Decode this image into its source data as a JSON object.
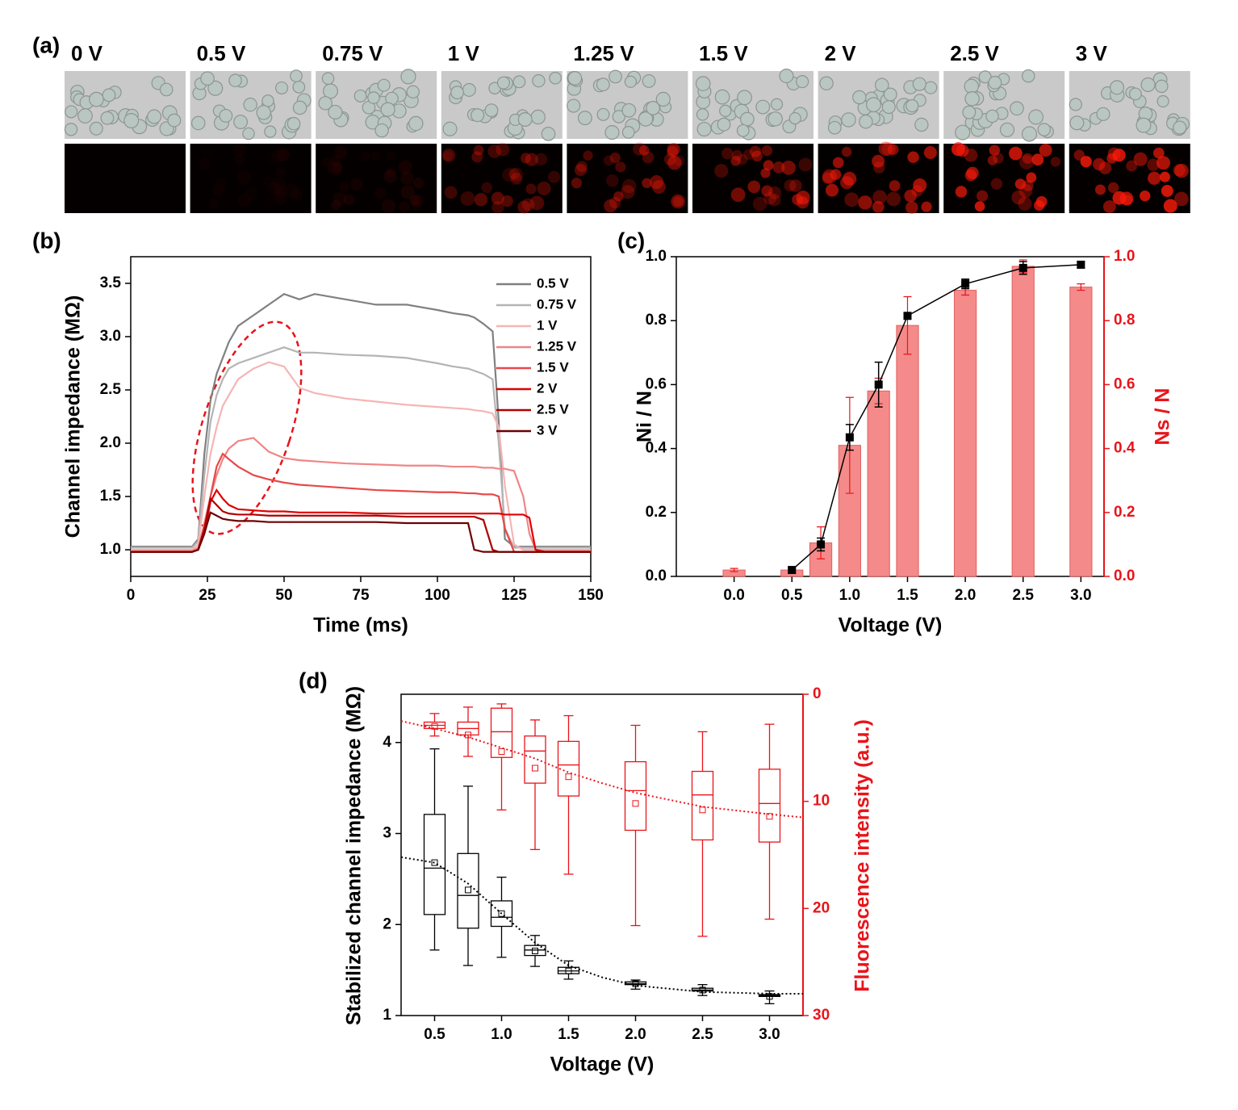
{
  "panel_a": {
    "label": "(a)",
    "voltages": [
      "0 V",
      "0.5 V",
      "0.75 V",
      "1 V",
      "1.25 V",
      "1.5 V",
      "2 V",
      "2.5 V",
      "3 V"
    ]
  },
  "chart_data": [
    {
      "type": "line",
      "panel_label": "(b)",
      "xlabel": "Time (ms)",
      "ylabel": "Channel impedance (MΩ)",
      "xlim": [
        0,
        150
      ],
      "xticks": [
        0,
        25,
        50,
        75,
        100,
        125,
        150
      ],
      "ylim": [
        0.75,
        3.75
      ],
      "yticks": [
        {
          "value": 1,
          "label": "1.0"
        },
        1.5,
        {
          "value": 2,
          "label": "2.0"
        },
        2.5,
        {
          "value": 3,
          "label": "3.0"
        },
        3.5
      ],
      "legend": "upper right",
      "x": [
        0,
        20,
        22,
        24,
        26,
        28,
        30,
        32,
        35,
        40,
        45,
        50,
        55,
        60,
        70,
        80,
        90,
        100,
        105,
        110,
        112,
        115,
        118,
        120,
        122,
        125,
        128,
        130,
        132,
        135,
        150
      ],
      "series": [
        {
          "name": "0.5 V",
          "color": "#808080",
          "values": [
            1.03,
            1.03,
            1.1,
            1.9,
            2.4,
            2.65,
            2.8,
            2.95,
            3.1,
            3.2,
            3.3,
            3.4,
            3.35,
            3.4,
            3.35,
            3.3,
            3.3,
            3.25,
            3.22,
            3.2,
            3.18,
            3.12,
            3.05,
            2.2,
            1.1,
            1.03,
            1.03,
            1.03,
            1.03,
            1.03,
            1.03
          ]
        },
        {
          "name": "0.75 V",
          "color": "#b4b4b4",
          "values": [
            1.02,
            1.02,
            1.08,
            1.7,
            2.2,
            2.45,
            2.6,
            2.7,
            2.75,
            2.8,
            2.85,
            2.9,
            2.85,
            2.85,
            2.83,
            2.82,
            2.8,
            2.75,
            2.72,
            2.7,
            2.68,
            2.65,
            2.6,
            2.0,
            1.2,
            1.02,
            1.02,
            1.02,
            1.02,
            1.02,
            1.02
          ]
        },
        {
          "name": "1 V",
          "color": "#f5b5b5",
          "values": [
            1.0,
            1.0,
            1.05,
            1.5,
            1.9,
            2.15,
            2.35,
            2.45,
            2.6,
            2.7,
            2.76,
            2.72,
            2.52,
            2.47,
            2.42,
            2.39,
            2.36,
            2.34,
            2.33,
            2.32,
            2.31,
            2.3,
            2.28,
            2.15,
            1.6,
            1.05,
            1.0,
            1.0,
            1.0,
            1.0,
            1.0
          ]
        },
        {
          "name": "1.25 V",
          "color": "#f08585",
          "values": [
            0.99,
            0.99,
            1.02,
            1.25,
            1.5,
            1.7,
            1.85,
            1.95,
            2.02,
            2.05,
            1.92,
            1.86,
            1.84,
            1.83,
            1.81,
            1.8,
            1.79,
            1.79,
            1.78,
            1.78,
            1.78,
            1.77,
            1.77,
            1.76,
            1.76,
            1.74,
            1.5,
            1.15,
            1.0,
            0.99,
            0.99
          ]
        },
        {
          "name": "1.5 V",
          "color": "#e84848",
          "values": [
            0.98,
            0.98,
            1.0,
            1.2,
            1.5,
            1.78,
            1.9,
            1.85,
            1.78,
            1.7,
            1.66,
            1.63,
            1.61,
            1.6,
            1.58,
            1.56,
            1.55,
            1.54,
            1.54,
            1.53,
            1.53,
            1.52,
            1.52,
            1.5,
            1.2,
            0.98,
            0.98,
            0.98,
            0.98,
            0.98,
            0.98
          ]
        },
        {
          "name": "2 V",
          "color": "#e00000",
          "values": [
            0.98,
            0.98,
            1.0,
            1.15,
            1.45,
            1.56,
            1.48,
            1.42,
            1.38,
            1.37,
            1.36,
            1.36,
            1.35,
            1.35,
            1.35,
            1.34,
            1.34,
            1.34,
            1.34,
            1.34,
            1.34,
            1.34,
            1.34,
            1.34,
            1.33,
            1.33,
            1.33,
            1.3,
            1.0,
            0.98,
            0.98
          ]
        },
        {
          "name": "2.5 V",
          "color": "#b00000",
          "values": [
            0.98,
            0.98,
            1.0,
            1.2,
            1.48,
            1.42,
            1.36,
            1.34,
            1.33,
            1.33,
            1.32,
            1.32,
            1.32,
            1.32,
            1.32,
            1.32,
            1.31,
            1.31,
            1.31,
            1.31,
            1.31,
            1.28,
            1.0,
            0.98,
            0.98,
            0.98,
            0.98,
            0.98,
            0.98,
            0.98,
            0.98
          ]
        },
        {
          "name": "3 V",
          "color": "#6e0000",
          "values": [
            0.98,
            0.98,
            1.0,
            1.15,
            1.35,
            1.32,
            1.29,
            1.28,
            1.27,
            1.27,
            1.26,
            1.26,
            1.26,
            1.26,
            1.26,
            1.26,
            1.25,
            1.25,
            1.25,
            1.25,
            1.0,
            0.98,
            0.98,
            0.98,
            0.98,
            0.98,
            0.98,
            0.98,
            0.98,
            0.98,
            0.98
          ]
        }
      ]
    },
    {
      "type": "bar",
      "panel_label": "(c)",
      "xlabel": "Voltage (V)",
      "ylabel": "Ni / N",
      "y2label": "Ns / N",
      "y2_color": "#e8141a",
      "xlim": [
        -0.5,
        3.2
      ],
      "xticks": [
        {
          "value": 0,
          "label": "0.0"
        },
        0.5,
        {
          "value": 1,
          "label": "1.0"
        },
        1.5,
        {
          "value": 2,
          "label": "2.0"
        },
        2.5,
        {
          "value": 3,
          "label": "3.0"
        }
      ],
      "ylim": [
        0,
        1
      ],
      "yticks": [
        {
          "value": 0,
          "label": "0.0"
        },
        0.2,
        0.4,
        0.6,
        0.8,
        {
          "value": 1,
          "label": "1.0"
        }
      ],
      "y2lim": [
        0,
        1
      ],
      "y2ticks": [
        {
          "value": 0,
          "label": "0.0"
        },
        0.2,
        0.4,
        0.6,
        0.8,
        {
          "value": 1,
          "label": "1.0"
        }
      ],
      "series": [
        {
          "mark": "bar",
          "axis": "y2",
          "color": "#f58a8a",
          "x": [
            0,
            0.5,
            0.75,
            1,
            1.25,
            1.5,
            2,
            2.5,
            3
          ],
          "values": [
            0.02,
            0.02,
            0.105,
            0.41,
            0.58,
            0.785,
            0.895,
            0.97,
            0.905
          ],
          "errors": [
            0.005,
            0.005,
            0.05,
            0.15,
            0.04,
            0.09,
            0.015,
            0.02,
            0.01
          ]
        },
        {
          "mark": "line",
          "axis": "y",
          "color": "#000000",
          "x": [
            0.5,
            0.75,
            1,
            1.25,
            1.5,
            2,
            2.5,
            3
          ],
          "values": [
            0.02,
            0.1,
            0.435,
            0.6,
            0.815,
            0.915,
            0.965,
            0.975
          ],
          "errors": [
            0.01,
            0.02,
            0.04,
            0.07,
            0.01,
            0.015,
            0.02,
            0.01
          ]
        }
      ]
    },
    {
      "type": "box",
      "panel_label": "(d)",
      "xlabel": "Voltage (V)",
      "ylabel": "Stabilized channel impedance (MΩ)",
      "y2label": "Fluorescence intensity (a.u.)",
      "y2_color": "#e8141a",
      "xlim": [
        0.25,
        3.25
      ],
      "xticks": [
        0.5,
        {
          "value": 1,
          "label": "1.0"
        },
        1.5,
        {
          "value": 2,
          "label": "2.0"
        },
        2.5,
        {
          "value": 3,
          "label": "3.0"
        }
      ],
      "ylim": [
        1,
        4.53
      ],
      "yticks": [
        1,
        2,
        3,
        4
      ],
      "y2lim": [
        30,
        0
      ],
      "y2ticks": [
        0,
        10,
        20,
        30
      ],
      "x": [
        0.5,
        0.75,
        1,
        1.25,
        1.5,
        2,
        2.5,
        3
      ],
      "fit_x": [
        0.25,
        0.5,
        0.75,
        1,
        1.25,
        1.5,
        1.75,
        2,
        2.5,
        3,
        3.25
      ],
      "series": [
        {
          "axis": "y",
          "color": "#000000",
          "whisker_low": [
            1.72,
            1.55,
            1.64,
            1.54,
            1.4,
            1.29,
            1.22,
            1.13
          ],
          "q1": [
            2.11,
            1.96,
            1.98,
            1.66,
            1.46,
            1.34,
            1.27,
            1.21
          ],
          "median": [
            2.62,
            2.32,
            2.08,
            1.72,
            1.49,
            1.35,
            1.28,
            1.22
          ],
          "q3": [
            3.21,
            2.78,
            2.26,
            1.77,
            1.53,
            1.37,
            1.3,
            1.23
          ],
          "whisker_high": [
            3.93,
            3.52,
            2.52,
            1.88,
            1.6,
            1.39,
            1.34,
            1.27
          ],
          "mean": [
            2.68,
            2.38,
            2.12,
            1.71,
            1.49,
            1.35,
            1.28,
            1.21
          ],
          "fit": [
            2.74,
            2.68,
            2.45,
            2.12,
            1.8,
            1.55,
            1.42,
            1.33,
            1.26,
            1.24,
            1.24
          ]
        },
        {
          "axis": "y2",
          "color": "#e8141a",
          "whisker_low": [
            1.8,
            1.2,
            0.9,
            2.4,
            2.0,
            2.9,
            3.5,
            2.8
          ],
          "q1": [
            2.6,
            2.6,
            1.3,
            3.9,
            4.4,
            6.3,
            7.2,
            7.0
          ],
          "median": [
            2.9,
            3.2,
            3.5,
            5.3,
            6.6,
            9.0,
            9.4,
            10.2
          ],
          "q3": [
            3.2,
            3.8,
            5.9,
            8.3,
            9.5,
            12.7,
            13.6,
            13.8
          ],
          "whisker_high": [
            3.9,
            5.8,
            10.8,
            14.5,
            16.8,
            21.6,
            22.6,
            21.0
          ],
          "mean": [
            3.0,
            3.8,
            5.35,
            6.9,
            7.7,
            10.2,
            10.8,
            11.4
          ],
          "fit": [
            2.5,
            3.2,
            4.0,
            5.0,
            6.0,
            7.3,
            8.3,
            9.2,
            10.5,
            11.2,
            11.5
          ]
        }
      ]
    }
  ]
}
